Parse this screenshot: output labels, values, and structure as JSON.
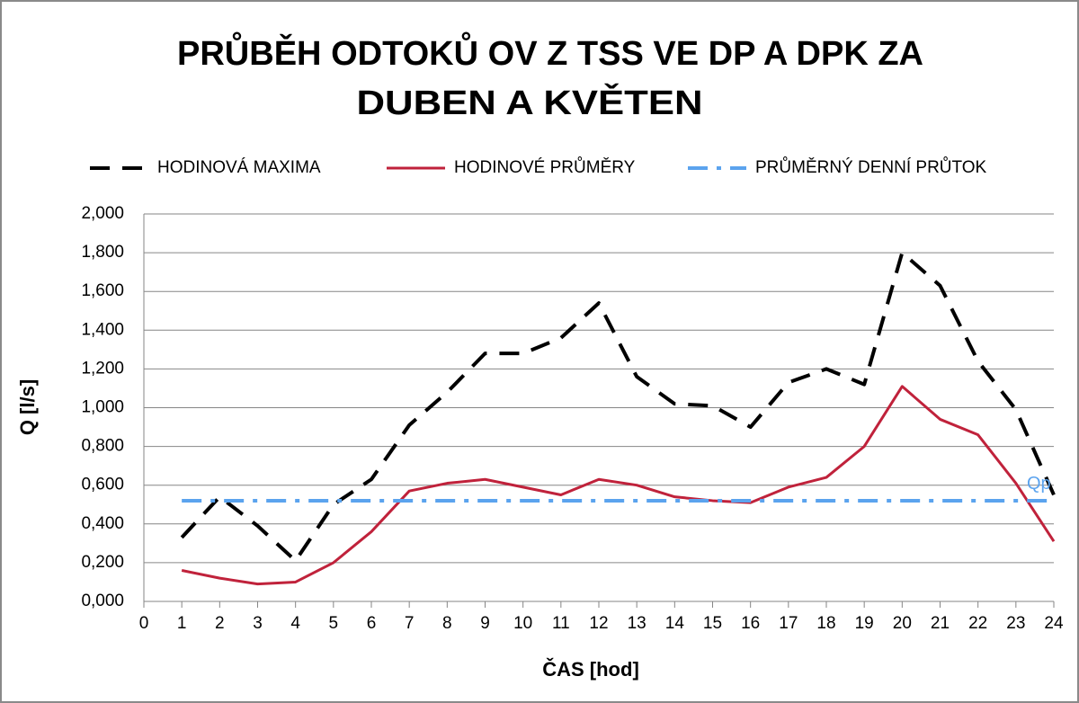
{
  "chart_data": {
    "type": "line",
    "title": [
      "PRŮBĚH ODTOKŮ OV Z TSS VE DP A DPK ZA",
      "DUBEN A KVĚTEN"
    ],
    "x_label": "ČAS [hod]",
    "y_label": "Q [l/s]",
    "x": [
      1,
      2,
      3,
      4,
      5,
      6,
      7,
      8,
      9,
      10,
      11,
      12,
      13,
      14,
      15,
      16,
      17,
      18,
      19,
      20,
      21,
      22,
      23,
      24
    ],
    "series": [
      {
        "name": "HODINOVÁ MAXIMA",
        "color": "#000000",
        "style": "dashed",
        "values": [
          0.33,
          0.54,
          0.39,
          0.21,
          0.5,
          0.63,
          0.91,
          1.08,
          1.28,
          1.28,
          1.36,
          1.54,
          1.16,
          1.02,
          1.01,
          0.9,
          1.13,
          1.2,
          1.12,
          1.8,
          1.63,
          1.24,
          0.99,
          0.55
        ]
      },
      {
        "name": "HODINOVÉ PRŮMĚRY",
        "color": "#c0223b",
        "style": "solid",
        "values": [
          0.16,
          0.12,
          0.09,
          0.1,
          0.2,
          0.36,
          0.57,
          0.61,
          0.63,
          0.59,
          0.55,
          0.63,
          0.6,
          0.54,
          0.52,
          0.51,
          0.59,
          0.64,
          0.8,
          1.11,
          0.94,
          0.86,
          0.61,
          0.31
        ]
      },
      {
        "name": "PRŮMĚRNÝ DENNÍ PRŮTOK",
        "color": "#5ba3ee",
        "style": "dashdot",
        "values": [
          0.52,
          0.52,
          0.52,
          0.52,
          0.52,
          0.52,
          0.52,
          0.52,
          0.52,
          0.52,
          0.52,
          0.52,
          0.52,
          0.52,
          0.52,
          0.52,
          0.52,
          0.52,
          0.52,
          0.52,
          0.52,
          0.52,
          0.52,
          0.52
        ]
      }
    ],
    "annotations": [
      "Qp"
    ],
    "xlim": [
      0,
      24
    ],
    "xticks": [
      0,
      1,
      2,
      3,
      4,
      5,
      6,
      7,
      8,
      9,
      10,
      11,
      12,
      13,
      14,
      15,
      16,
      17,
      18,
      19,
      20,
      21,
      22,
      23,
      24
    ],
    "ylim": [
      0,
      2
    ],
    "yticks": [
      {
        "value": 0,
        "label": "0,000"
      },
      {
        "value": 0.2,
        "label": "0,200"
      },
      {
        "value": 0.4,
        "label": "0,400"
      },
      {
        "value": 0.6,
        "label": "0,600"
      },
      {
        "value": 0.8,
        "label": "0,800"
      },
      {
        "value": 1,
        "label": "1,000"
      },
      {
        "value": 1.2,
        "label": "1,200"
      },
      {
        "value": 1.4,
        "label": "1,400"
      },
      {
        "value": 1.6,
        "label": "1,600"
      },
      {
        "value": 1.8,
        "label": "1,800"
      },
      {
        "value": 2,
        "label": "2,000"
      }
    ],
    "grid": true,
    "legend": "top"
  }
}
